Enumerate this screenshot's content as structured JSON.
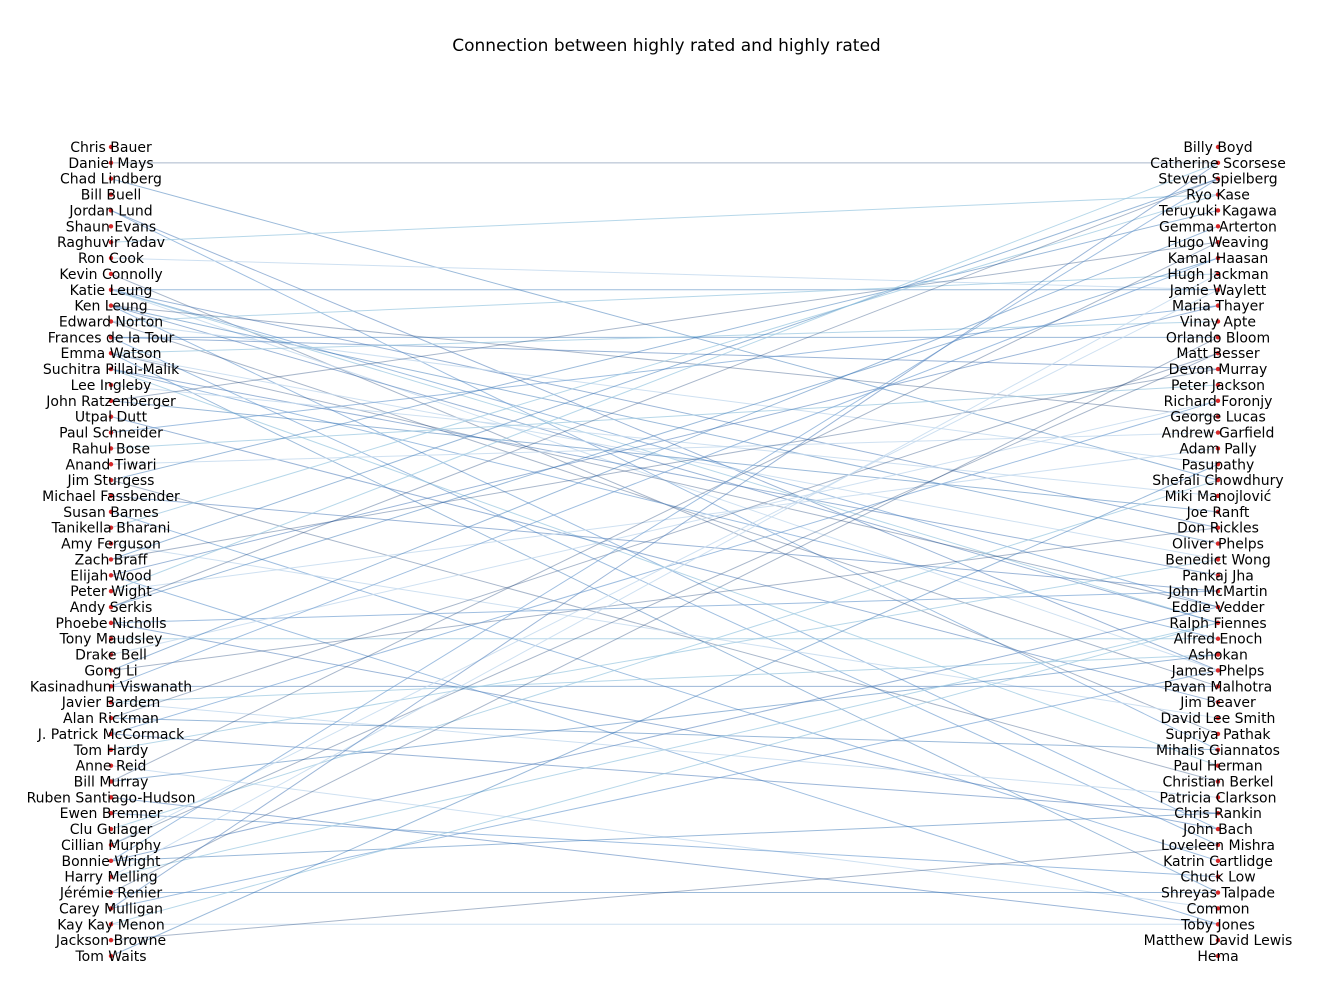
{
  "chart_data": {
    "type": "bipartite-network",
    "title": "Connection between highly rated and highly rated",
    "left_nodes": [
      "Chris Bauer",
      "Daniel Mays",
      "Chad Lindberg",
      "Bill Buell",
      "Jordan Lund",
      "Shaun Evans",
      "Raghuvir Yadav",
      "Ron Cook",
      "Kevin Connolly",
      "Katie Leung",
      "Ken Leung",
      "Edward Norton",
      "Frances de la Tour",
      "Emma Watson",
      "Suchitra Pillai-Malik",
      "Lee Ingleby",
      "John Ratzenberger",
      "Utpal Dutt",
      "Paul Schneider",
      "Rahul Bose",
      "Anand Tiwari",
      "Jim Sturgess",
      "Michael Fassbender",
      "Susan Barnes",
      "Tanikella Bharani",
      "Amy Ferguson",
      "Zach Braff",
      "Elijah Wood",
      "Peter Wight",
      "Andy Serkis",
      "Phoebe Nicholls",
      "Tony Maudsley",
      "Drake Bell",
      "Gong Li",
      "Kasinadhuni Viswanath",
      "Javier Bardem",
      "Alan Rickman",
      "J. Patrick McCormack",
      "Tom Hardy",
      "Anne Reid",
      "Bill Murray",
      "Ruben Santiago-Hudson",
      "Ewen Bremner",
      "Clu Gulager",
      "Cillian Murphy",
      "Bonnie Wright",
      "Harry Melling",
      "Jérémie Renier",
      "Carey Mulligan",
      "Kay Kay Menon",
      "Jackson Browne",
      "Tom Waits"
    ],
    "right_nodes": [
      "Billy Boyd",
      "Catherine Scorsese",
      "Steven Spielberg",
      "Ryo Kase",
      "Teruyuki Kagawa",
      "Gemma Arterton",
      "Hugo Weaving",
      "Kamal Haasan",
      "Hugh Jackman",
      "Jamie Waylett",
      "Maria Thayer",
      "Vinay Apte",
      "Orlando Bloom",
      "Matt Besser",
      "Devon Murray",
      "Peter Jackson",
      "Richard Foronjy",
      "George Lucas",
      "Andrew Garfield",
      "Adam Pally",
      "Pasupathy",
      "Shefali Chowdhury",
      "Miki Manojlović",
      "Joe Ranft",
      "Don Rickles",
      "Oliver Phelps",
      "Benedict Wong",
      "Pankaj Jha",
      "John McMartin",
      "Eddie Vedder",
      "Ralph Fiennes",
      "Alfred Enoch",
      "Ashokan",
      "James Phelps",
      "Pavan Malhotra",
      "Jim Beaver",
      "David Lee Smith",
      "Supriya Pathak",
      "Mihalis Giannatos",
      "Paul Herman",
      "Christian Berkel",
      "Patricia Clarkson",
      "Chris Rankin",
      "John Bach",
      "Loveleen Mishra",
      "Katrin Cartlidge",
      "Chuck Low",
      "Shreyas Talpade",
      "Common",
      "Toby Jones",
      "Matthew David Lewis",
      "Hema"
    ],
    "edges": [
      [
        1,
        1
      ],
      [
        2,
        21
      ],
      [
        4,
        33
      ],
      [
        4,
        38
      ],
      [
        6,
        3
      ],
      [
        7,
        9
      ],
      [
        8,
        37
      ],
      [
        9,
        9
      ],
      [
        9,
        24
      ],
      [
        9,
        29
      ],
      [
        9,
        30
      ],
      [
        9,
        33
      ],
      [
        10,
        17
      ],
      [
        10,
        25
      ],
      [
        10,
        30
      ],
      [
        10,
        43
      ],
      [
        11,
        8
      ],
      [
        11,
        20
      ],
      [
        11,
        34
      ],
      [
        12,
        12
      ],
      [
        12,
        14
      ],
      [
        12,
        44
      ],
      [
        13,
        11
      ],
      [
        13,
        26
      ],
      [
        13,
        29
      ],
      [
        13,
        47
      ],
      [
        14,
        27
      ],
      [
        14,
        31
      ],
      [
        14,
        39
      ],
      [
        15,
        22
      ],
      [
        16,
        6
      ],
      [
        16,
        23
      ],
      [
        17,
        35
      ],
      [
        18,
        10
      ],
      [
        19,
        15
      ],
      [
        20,
        18
      ],
      [
        21,
        40
      ],
      [
        21,
        4
      ],
      [
        22,
        28
      ],
      [
        23,
        45
      ],
      [
        24,
        3
      ],
      [
        25,
        36
      ],
      [
        26,
        14
      ],
      [
        26,
        2
      ],
      [
        27,
        10
      ],
      [
        27,
        49
      ],
      [
        28,
        1
      ],
      [
        28,
        19
      ],
      [
        29,
        2
      ],
      [
        29,
        7
      ],
      [
        30,
        43
      ],
      [
        30,
        28
      ],
      [
        31,
        31
      ],
      [
        32,
        16
      ],
      [
        33,
        24
      ],
      [
        33,
        5
      ],
      [
        34,
        34
      ],
      [
        34,
        7
      ],
      [
        35,
        32
      ],
      [
        35,
        41
      ],
      [
        36,
        13
      ],
      [
        36,
        38
      ],
      [
        37,
        42
      ],
      [
        37,
        16
      ],
      [
        38,
        26
      ],
      [
        39,
        48
      ],
      [
        40,
        6
      ],
      [
        40,
        32
      ],
      [
        41,
        49
      ],
      [
        42,
        46
      ],
      [
        43,
        21
      ],
      [
        44,
        9
      ],
      [
        44,
        13
      ],
      [
        45,
        42
      ],
      [
        45,
        29
      ],
      [
        45,
        2
      ],
      [
        46,
        30
      ],
      [
        46,
        8
      ],
      [
        47,
        12
      ],
      [
        47,
        47
      ],
      [
        48,
        1
      ],
      [
        48,
        33
      ],
      [
        49,
        30
      ],
      [
        49,
        49
      ],
      [
        50,
        44
      ],
      [
        51,
        20
      ]
    ]
  }
}
